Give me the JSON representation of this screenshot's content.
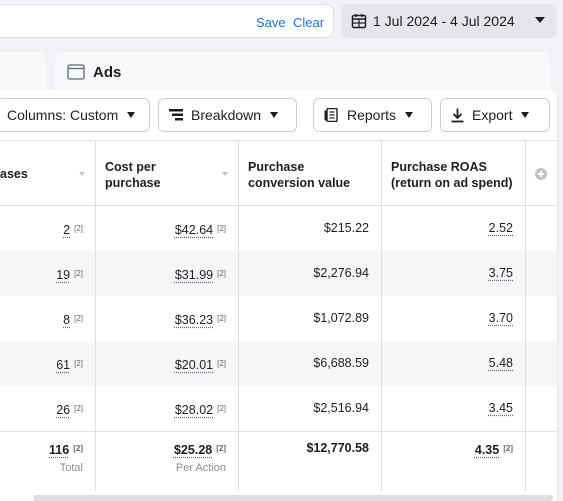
{
  "filter_bar": {
    "save_label": "Save",
    "clear_label": "Clear"
  },
  "date_range": {
    "label": "1 Jul 2024 - 4 Jul 2024"
  },
  "tabs": {
    "ads_label": "Ads"
  },
  "toolbar": {
    "columns_label": "Columns: Custom",
    "breakdown_label": "Breakdown",
    "reports_label": "Reports",
    "export_label": "Export"
  },
  "table": {
    "headers": [
      {
        "label": "ases"
      },
      {
        "label": "Cost per purchase"
      },
      {
        "label": "Purchase conversion value"
      },
      {
        "label": "Purchase ROAS (return on ad spend)"
      }
    ],
    "footnote": "[2]",
    "rows": [
      {
        "purchases": "2",
        "cost_per_purchase": "$42.64",
        "conversion_value": "$215.22",
        "roas": "2.52"
      },
      {
        "purchases": "19",
        "cost_per_purchase": "$31.99",
        "conversion_value": "$2,276.94",
        "roas": "3.75"
      },
      {
        "purchases": "8",
        "cost_per_purchase": "$36.23",
        "conversion_value": "$1,072.89",
        "roas": "3.70"
      },
      {
        "purchases": "61",
        "cost_per_purchase": "$20.01",
        "conversion_value": "$6,688.59",
        "roas": "5.48"
      },
      {
        "purchases": "26",
        "cost_per_purchase": "$28.02",
        "conversion_value": "$2,516.94",
        "roas": "3.45"
      }
    ],
    "totals": {
      "purchases": "116",
      "purchases_sub": "Total",
      "cost_per_purchase": "$25.28",
      "cost_sub": "Per Action",
      "conversion_value": "$12,770.58",
      "roas": "4.35"
    }
  }
}
